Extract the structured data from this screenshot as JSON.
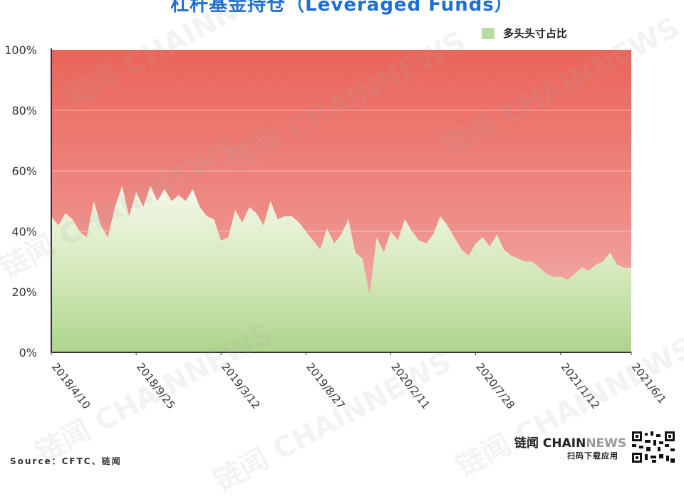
{
  "title": "杠杆基金持仓（Leveraged Funds）",
  "legend": {
    "label": "多头头寸占比",
    "color": "#b9dd9e"
  },
  "source": "Source：CFTC、链闻",
  "brand": {
    "name": "链闻",
    "latin_a": "CHAIN",
    "latin_b": "NEWS",
    "sub": "扫码下载应用"
  },
  "watermark": "链闻 CHAINNEWS",
  "colors": {
    "short": "#e8665c",
    "long": "#b9dd9e",
    "axis": "#333333",
    "grid": "#ffffff"
  },
  "chart_data": {
    "type": "area",
    "ylim": [
      0,
      100
    ],
    "yticks": [
      "0%",
      "20%",
      "40%",
      "60%",
      "80%",
      "100%"
    ],
    "xticks": [
      "2018/4/10",
      "2018/9/25",
      "2019/3/12",
      "2019/8/27",
      "2020/2/11",
      "2020/7/28",
      "2021/1/12",
      "2021/6/1"
    ],
    "x": [
      "2018/4/10",
      "2018/4/24",
      "2018/5/8",
      "2018/5/22",
      "2018/6/5",
      "2018/6/19",
      "2018/7/3",
      "2018/7/17",
      "2018/7/31",
      "2018/8/14",
      "2018/8/28",
      "2018/9/11",
      "2018/9/25",
      "2018/10/9",
      "2018/10/23",
      "2018/11/6",
      "2018/11/20",
      "2018/12/4",
      "2018/12/18",
      "2019/1/1",
      "2019/1/15",
      "2019/1/29",
      "2019/2/12",
      "2019/2/26",
      "2019/3/12",
      "2019/3/26",
      "2019/4/9",
      "2019/4/23",
      "2019/5/7",
      "2019/5/21",
      "2019/6/4",
      "2019/6/18",
      "2019/7/2",
      "2019/7/16",
      "2019/7/30",
      "2019/8/13",
      "2019/8/27",
      "2019/9/10",
      "2019/9/24",
      "2019/10/8",
      "2019/10/22",
      "2019/11/5",
      "2019/11/19",
      "2019/12/3",
      "2019/12/17",
      "2019/12/31",
      "2020/1/14",
      "2020/1/28",
      "2020/2/11",
      "2020/2/25",
      "2020/3/10",
      "2020/3/24",
      "2020/4/7",
      "2020/4/21",
      "2020/5/5",
      "2020/5/19",
      "2020/6/2",
      "2020/6/16",
      "2020/6/30",
      "2020/7/14",
      "2020/7/28",
      "2020/8/11",
      "2020/8/25",
      "2020/9/8",
      "2020/9/22",
      "2020/10/6",
      "2020/10/20",
      "2020/11/3",
      "2020/11/17",
      "2020/12/1",
      "2020/12/15",
      "2020/12/29",
      "2021/1/12",
      "2021/1/26",
      "2021/2/9",
      "2021/2/23",
      "2021/3/9",
      "2021/3/23",
      "2021/4/6",
      "2021/4/20",
      "2021/5/4",
      "2021/5/18",
      "2021/6/1"
    ],
    "series": [
      {
        "name": "多头头寸占比",
        "values": [
          45,
          42,
          46,
          44,
          40,
          38,
          50,
          42,
          38,
          48,
          55,
          45,
          53,
          48,
          55,
          50,
          54,
          50,
          52,
          50,
          54,
          48,
          45,
          44,
          37,
          38,
          47,
          43,
          48,
          46,
          42,
          50,
          44,
          45,
          45,
          43,
          40,
          37,
          34,
          41,
          36,
          39,
          44,
          33,
          31,
          19,
          38,
          33,
          40,
          37,
          44,
          40,
          37,
          36,
          39,
          45,
          42,
          38,
          34,
          32,
          36,
          38,
          35,
          39,
          34,
          32,
          31,
          30,
          30,
          28,
          26,
          25,
          25,
          24,
          26,
          28,
          27,
          29,
          30,
          33,
          29,
          28,
          28
        ]
      }
    ]
  }
}
